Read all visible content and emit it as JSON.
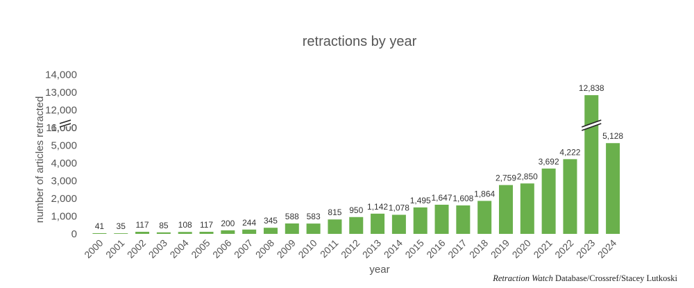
{
  "chart_data": {
    "type": "bar",
    "title": "retractions by year",
    "xlabel": "year",
    "ylabel": "number of articles retracted",
    "categories": [
      "2000",
      "2001",
      "2002",
      "2003",
      "2004",
      "2005",
      "2006",
      "2007",
      "2008",
      "2009",
      "2010",
      "2011",
      "2012",
      "2013",
      "2014",
      "2015",
      "2016",
      "2017",
      "2018",
      "2019",
      "2020",
      "2021",
      "2022",
      "2023",
      "2024"
    ],
    "values": [
      41,
      35,
      117,
      85,
      108,
      117,
      200,
      244,
      345,
      588,
      583,
      815,
      950,
      1142,
      1078,
      1495,
      1647,
      1608,
      1864,
      2759,
      2850,
      3692,
      4222,
      12838,
      5128
    ],
    "value_labels": [
      "41",
      "35",
      "117",
      "85",
      "108",
      "117",
      "200",
      "244",
      "345",
      "588",
      "583",
      "815",
      "950",
      "1,142",
      "1,078",
      "1,495",
      "1,647",
      "1,608",
      "1,864",
      "2,759",
      "2,850",
      "3,692",
      "4,222",
      "12,838",
      "5,128"
    ],
    "y_ticks": [
      "0",
      "1,000",
      "2,000",
      "3,000",
      "4,000",
      "5,000",
      "6,000",
      "11,000",
      "12,000",
      "13,000",
      "14,000"
    ],
    "y_axis_break": [
      6000,
      11000
    ],
    "ylim": [
      0,
      14000
    ],
    "grid": false,
    "bar_color": "#6ab04c"
  },
  "credit": {
    "source_italic": "Retraction Watch",
    "source_rest": " Database/Crossref/Stacey Lutkoski"
  }
}
